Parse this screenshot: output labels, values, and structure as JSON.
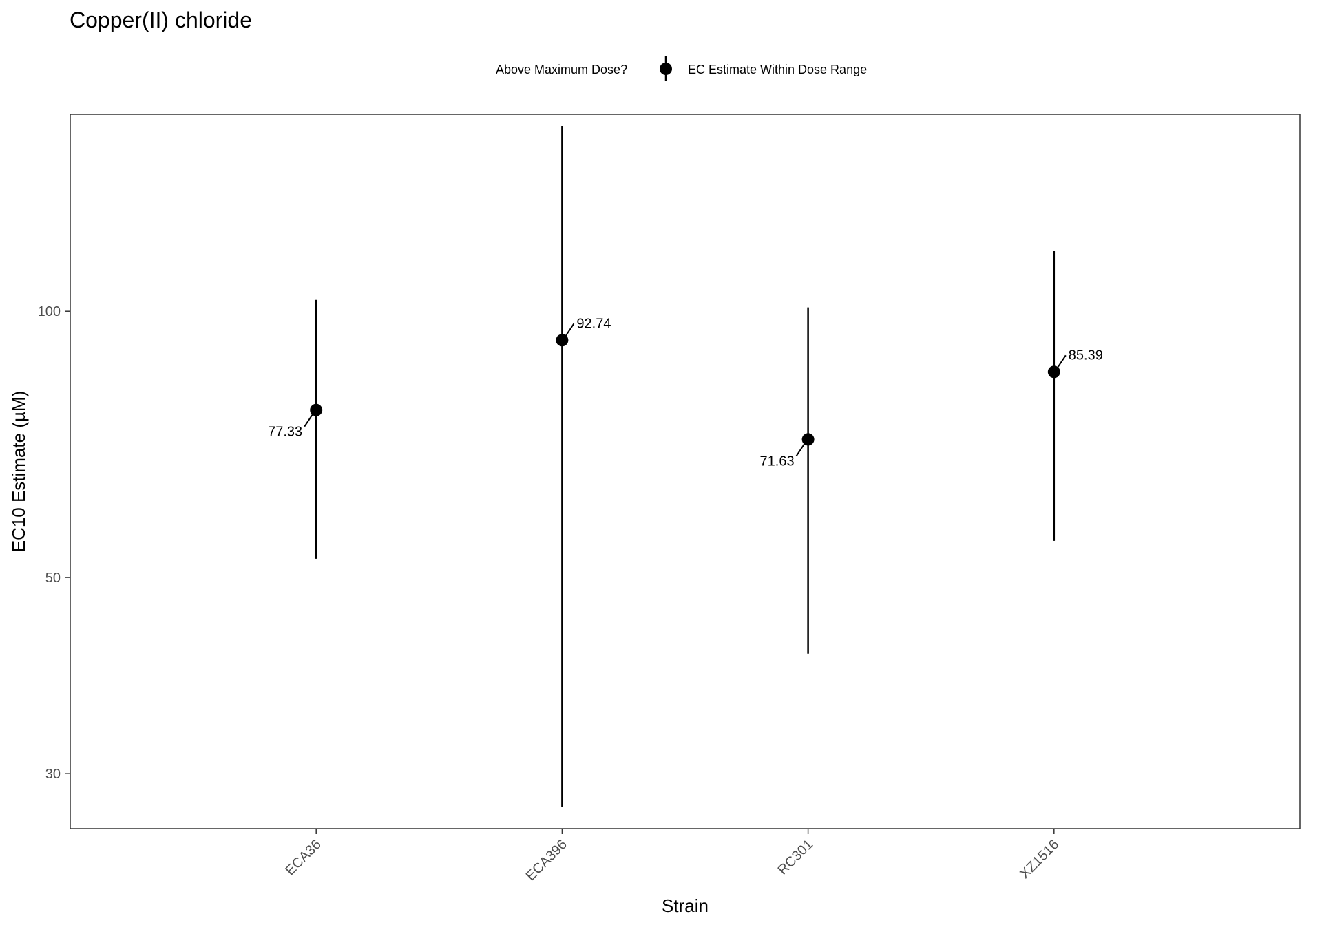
{
  "chart_data": {
    "type": "scatter",
    "title": "Copper(II) chloride",
    "xlabel": "Strain",
    "ylabel": "EC10 Estimate (µM)",
    "y_scale": "log",
    "ylim": [
      26,
      167
    ],
    "yticks": [
      30,
      50,
      100
    ],
    "ytick_labels": [
      "30",
      "50",
      "100"
    ],
    "grid": false,
    "legend": {
      "placement": "top",
      "title": "Above Maximum Dose?",
      "entries": [
        {
          "label": "EC Estimate Within Dose Range",
          "marker": "point-with-errorbar",
          "color": "#000000"
        }
      ]
    },
    "categories": [
      "ECA36",
      "ECA396",
      "RC301",
      "XZ1516"
    ],
    "series": [
      {
        "name": "EC Estimate Within Dose Range",
        "color": "#000000",
        "points": [
          {
            "x": "ECA36",
            "y": 77.33,
            "lower": 52.5,
            "upper": 103.0,
            "label": "77.33",
            "label_side": "left"
          },
          {
            "x": "ECA396",
            "y": 92.74,
            "lower": 27.5,
            "upper": 162.0,
            "label": "92.74",
            "label_side": "right"
          },
          {
            "x": "RC301",
            "y": 71.63,
            "lower": 41.0,
            "upper": 101.0,
            "label": "71.63",
            "label_side": "left"
          },
          {
            "x": "XZ1516",
            "y": 85.39,
            "lower": 55.0,
            "upper": 117.0,
            "label": "85.39",
            "label_side": "right"
          }
        ]
      }
    ]
  }
}
